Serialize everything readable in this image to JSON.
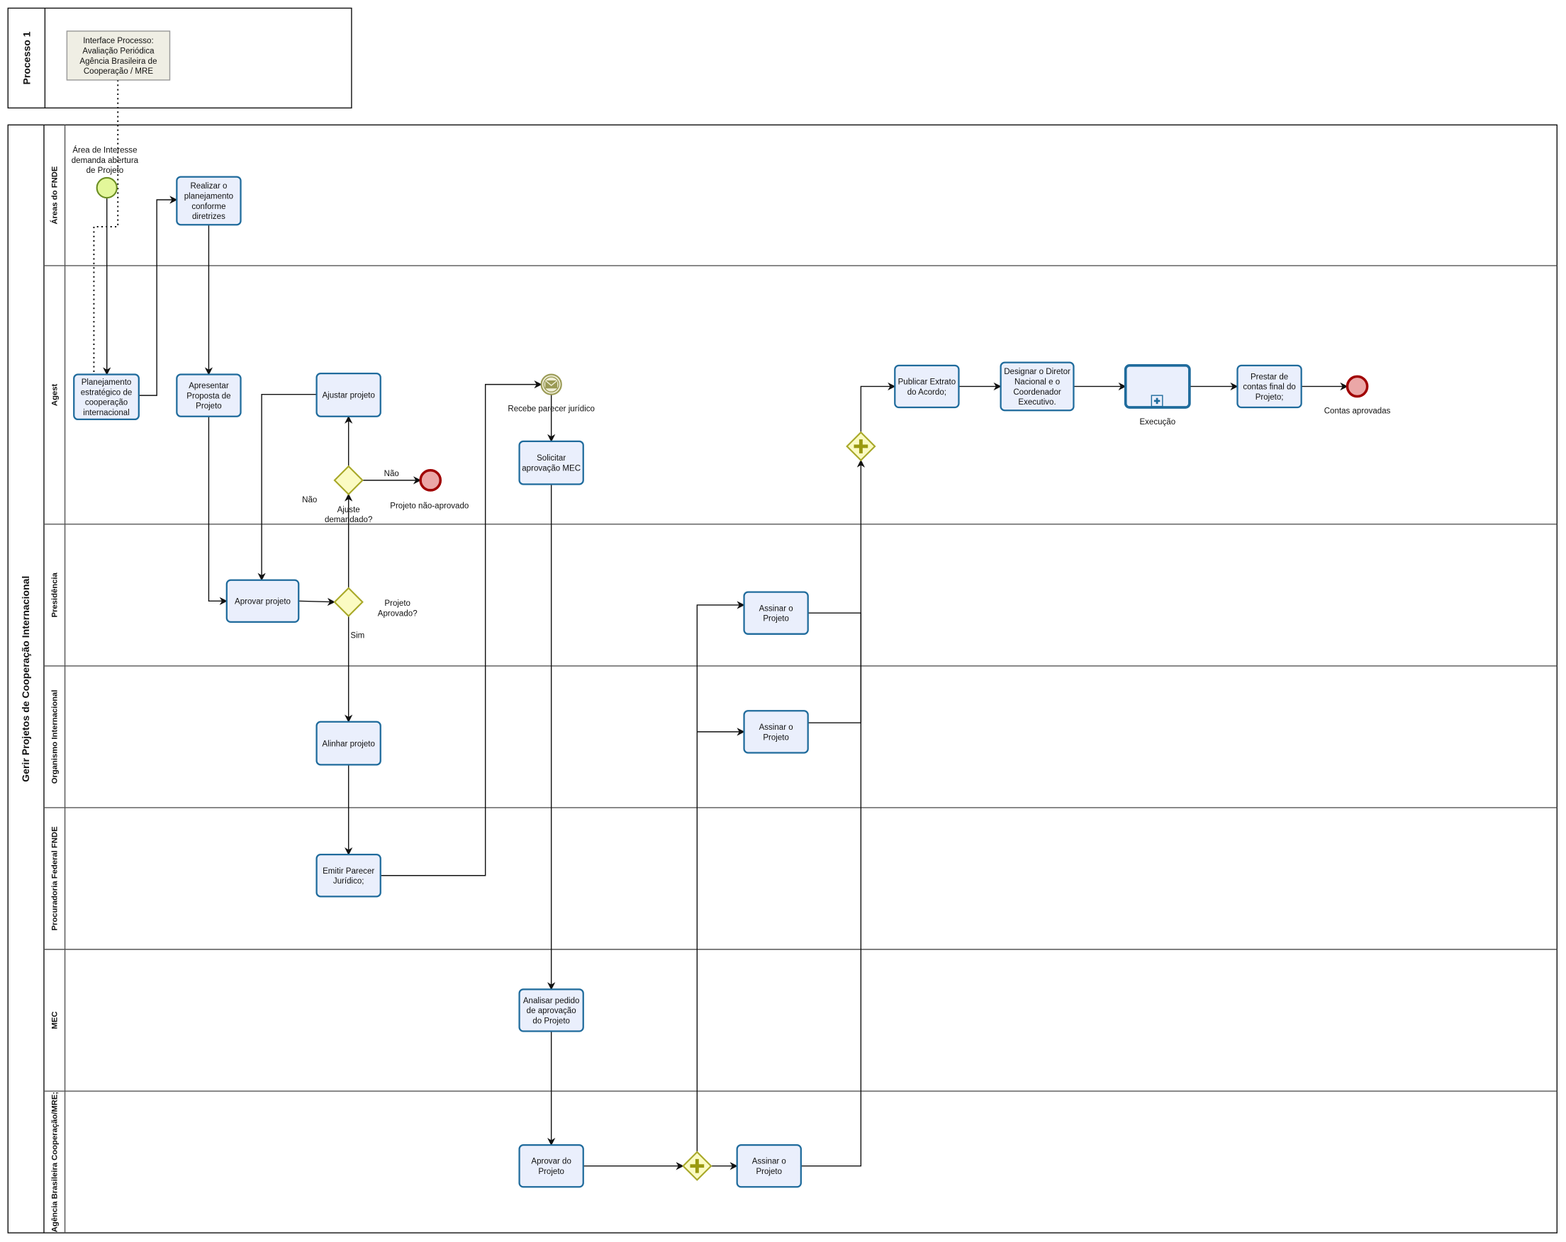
{
  "interface_pool": {
    "label": "Processo 1",
    "interface_task": [
      "Interface Processo:",
      "Avaliação Periódica",
      "Agência Brasileira de",
      "Cooperação / MRE"
    ]
  },
  "main_pool": {
    "label": "Gerir Projetos de Cooperação Internacional",
    "lanes": [
      "Áreas do FNDE",
      "Agest",
      "Presidência",
      "Organismo Internacional",
      "Procuradoria Federal FNDE",
      "MEC",
      "Agência Brasileira Cooperação/MRE;"
    ]
  },
  "tasks": {
    "realizar": [
      "Realizar o",
      "planejamento",
      "conforme",
      "diretrizes"
    ],
    "planejamento": [
      "Planejamento",
      "estratégico de",
      "cooperação",
      "internacional"
    ],
    "apresentar": [
      "Apresentar",
      "Proposta de",
      "Projeto"
    ],
    "ajustar": [
      "Ajustar projeto"
    ],
    "solicitar": [
      "Solicitar",
      "aprovação MEC"
    ],
    "publicar": [
      "Publicar Extrato",
      "do Acordo;"
    ],
    "designar": [
      "Designar o Diretor",
      "Nacional e o",
      "Coordenador",
      "Executivo."
    ],
    "execucao": [],
    "prestar": [
      "Prestar de",
      "contas final do",
      "Projeto;"
    ],
    "aprovar": [
      "Aprovar projeto"
    ],
    "assinar_pres": [
      "Assinar o",
      "Projeto"
    ],
    "alinhar": [
      "Alinhar projeto"
    ],
    "assinar_oi": [
      "Assinar o",
      "Projeto"
    ],
    "emitir": [
      "Emitir Parecer",
      "Jurídico;"
    ],
    "analisar": [
      "Analisar pedido",
      "de aprovação",
      "do Projeto"
    ],
    "aprovar_do": [
      "Aprovar do",
      "Projeto"
    ],
    "assinar_abc": [
      "Assinar o",
      "Projeto"
    ]
  },
  "labels": {
    "start": [
      "Área de Interesse",
      "demanda abertura",
      "de Projeto"
    ],
    "nao1": [
      "Não"
    ],
    "nao2": [
      "Não"
    ],
    "ajuste_gw": [
      "Ajuste",
      "demandado?"
    ],
    "end_nao": [
      "Projeto não-aprovado"
    ],
    "aprov_gw": [
      "Projeto",
      "Aprovado?"
    ],
    "sim": [
      "Sim"
    ],
    "msg": [
      "Recebe parecer jurídico"
    ],
    "execucao": [
      "Execução"
    ],
    "end_ok": [
      "Contas aprovadas"
    ]
  },
  "colors": {
    "task_fill": "#eaeffc",
    "task_stroke": "#1f6b9c",
    "start_fill": "#e3f79a",
    "start_stroke": "#6b8e23",
    "end_fill": "#eba7a7",
    "end_stroke": "#a00000",
    "gateway_fill": "#fbfbc3",
    "gateway_stroke": "#a8a828",
    "interface_fill": "#efeee4"
  }
}
